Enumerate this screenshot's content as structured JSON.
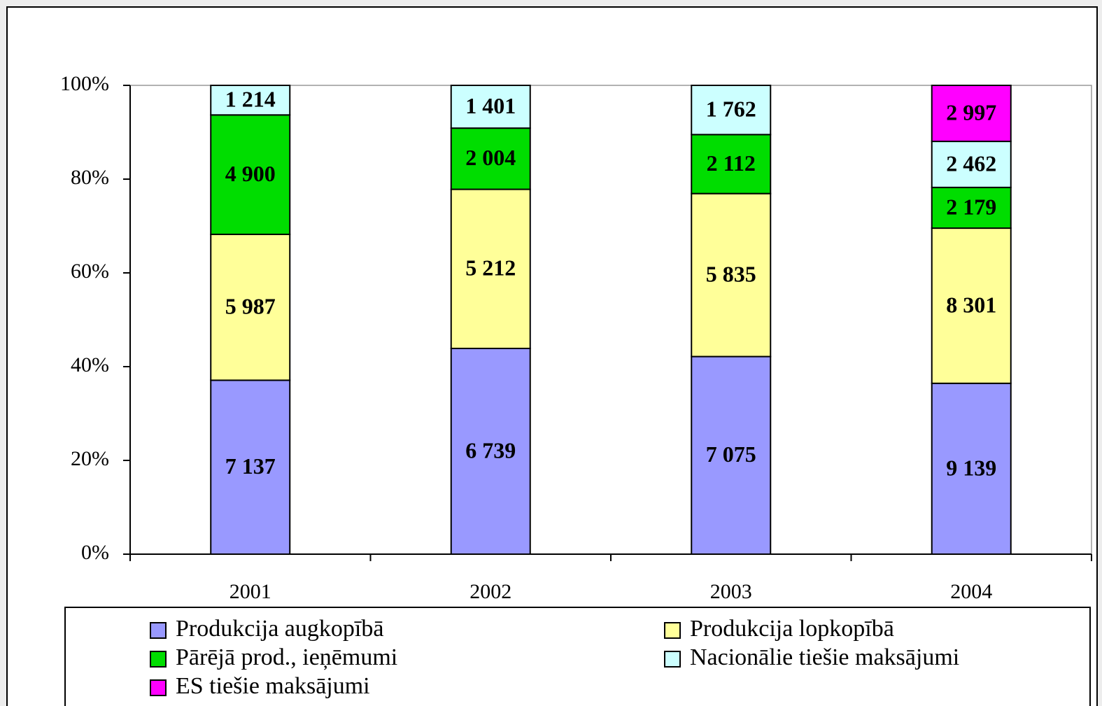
{
  "chart_data": {
    "type": "bar",
    "stacking": "percent",
    "categories": [
      "2001",
      "2002",
      "2003",
      "2004"
    ],
    "series": [
      {
        "name": "Produkcija augkopībā",
        "color": "#9999ff",
        "values": [
          7137,
          6739,
          7075,
          9139
        ],
        "value_labels": [
          "7 137",
          "6 739",
          "7 075",
          "9 139"
        ]
      },
      {
        "name": "Produkcija lopkopībā",
        "color": "#ffff99",
        "values": [
          5987,
          5212,
          5835,
          8301
        ],
        "value_labels": [
          "5 987",
          "5 212",
          "5 835",
          "8 301"
        ]
      },
      {
        "name": "Pārējā prod., ieņēmumi",
        "color": "#00dd00",
        "values": [
          4900,
          2004,
          2112,
          2179
        ],
        "value_labels": [
          "4 900",
          "2 004",
          "2 112",
          "2 179"
        ]
      },
      {
        "name": "Nacionālie tiešie maksājumi",
        "color": "#ccffff",
        "values": [
          1214,
          1401,
          1762,
          2462
        ],
        "value_labels": [
          "1 214",
          "1 401",
          "1 762",
          "2 462"
        ]
      },
      {
        "name": "ES tiešie maksājumi",
        "color": "#ff00ff",
        "values": [
          null,
          null,
          null,
          2997
        ],
        "value_labels": [
          null,
          null,
          null,
          "2 997"
        ]
      }
    ],
    "ylim": [
      0,
      100
    ],
    "yticks": [
      {
        "value": 0,
        "label": "0%"
      },
      {
        "value": 20,
        "label": "20%"
      },
      {
        "value": 40,
        "label": "40%"
      },
      {
        "value": 60,
        "label": "60%"
      },
      {
        "value": 80,
        "label": "80%"
      },
      {
        "value": 100,
        "label": "100%"
      }
    ],
    "legend": "bottom"
  }
}
